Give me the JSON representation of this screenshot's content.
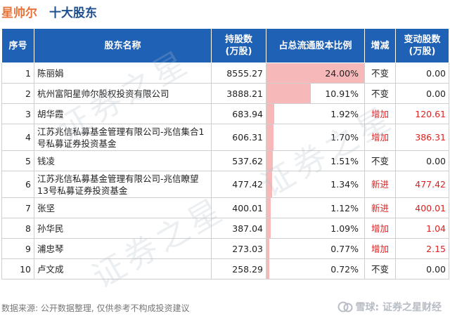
{
  "header": {
    "company": "星帅尔",
    "subtitle": "十大股东"
  },
  "table": {
    "headers": {
      "rank": "序号",
      "name": "股东名称",
      "holding_l1": "持股数",
      "holding_l2": "(万股)",
      "ratio": "占总流通股本比例",
      "change": "增减",
      "delta_l1": "变动股数",
      "delta_l2": "(万股)"
    },
    "rows": [
      {
        "rank": "1",
        "name": "陈丽娟",
        "holding": "8555.27",
        "ratio": "24.00%",
        "ratio_value": 24.0,
        "change": "不变",
        "delta": "0.00"
      },
      {
        "rank": "2",
        "name": "杭州富阳星帅尔股权投资有限公司",
        "holding": "3888.21",
        "ratio": "10.91%",
        "ratio_value": 10.91,
        "change": "不变",
        "delta": "0.00"
      },
      {
        "rank": "3",
        "name": "胡华霞",
        "holding": "683.94",
        "ratio": "1.92%",
        "ratio_value": 1.92,
        "change": "增加",
        "delta": "120.61"
      },
      {
        "rank": "4",
        "name": "江苏兆信私募基金管理有限公司-兆信集合1号私募证券投资基金",
        "holding": "606.31",
        "ratio": "1.70%",
        "ratio_value": 1.7,
        "change": "增加",
        "delta": "386.31"
      },
      {
        "rank": "5",
        "name": "钱凌",
        "holding": "537.62",
        "ratio": "1.51%",
        "ratio_value": 1.51,
        "change": "不变",
        "delta": "0.00"
      },
      {
        "rank": "6",
        "name": "江苏兆信私募基金管理有限公司-兆信瞭望13号私募证券投资基金",
        "holding": "477.42",
        "ratio": "1.34%",
        "ratio_value": 1.34,
        "change": "新进",
        "delta": "477.42"
      },
      {
        "rank": "7",
        "name": "张坚",
        "holding": "400.01",
        "ratio": "1.12%",
        "ratio_value": 1.12,
        "change": "新进",
        "delta": "400.01"
      },
      {
        "rank": "8",
        "name": "孙华民",
        "holding": "387.04",
        "ratio": "1.09%",
        "ratio_value": 1.09,
        "change": "增加",
        "delta": "1.04"
      },
      {
        "rank": "9",
        "name": "浦忠琴",
        "holding": "273.03",
        "ratio": "0.77%",
        "ratio_value": 0.77,
        "change": "增加",
        "delta": "2.15"
      },
      {
        "rank": "10",
        "name": "卢文成",
        "holding": "258.29",
        "ratio": "0.72%",
        "ratio_value": 0.72,
        "change": "不变",
        "delta": "0.00"
      }
    ]
  },
  "footer": {
    "source": "数据来源: 公开数据整理, 仅供参考不构成投资建议",
    "brand": "雪球: 证券之星财经"
  },
  "watermark": "证券之星",
  "colors": {
    "header_bg": "#1f61b5",
    "bar": "#f6b8b8",
    "increase": "#e02020",
    "company": "#e8743b",
    "subtitle": "#1f4f8f"
  },
  "icons": {
    "brand_logo": "snowball-logo-icon"
  }
}
